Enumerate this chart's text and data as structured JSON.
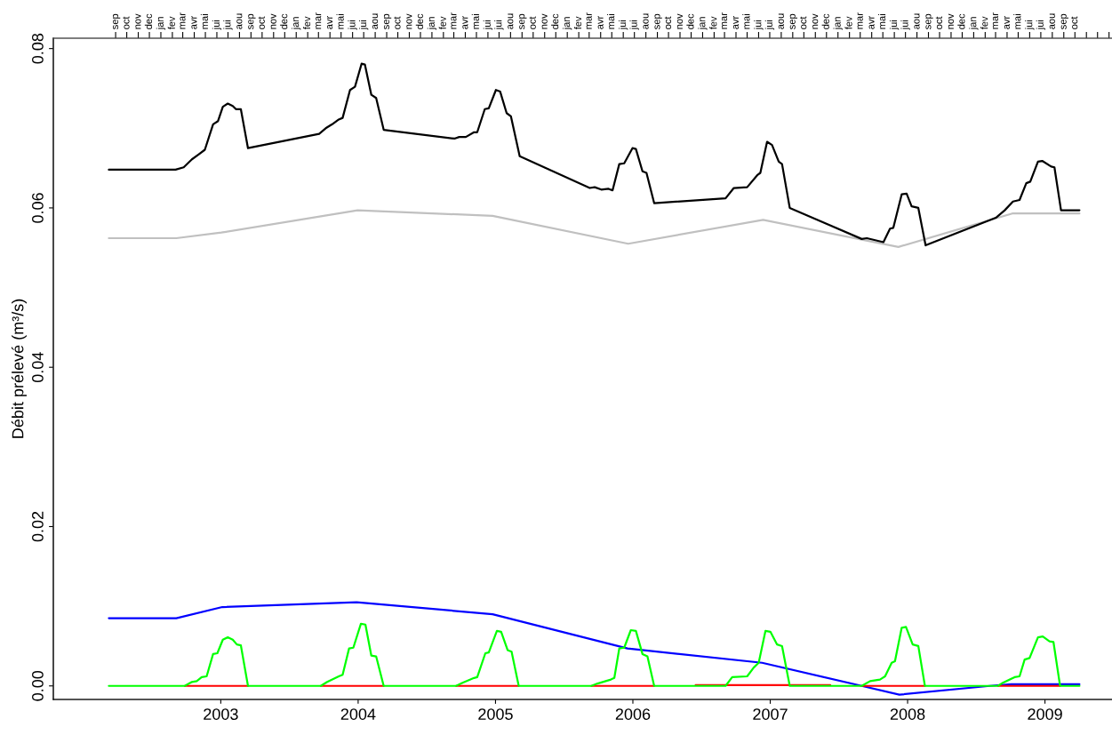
{
  "chart_data": {
    "type": "line",
    "ylabel": "Débit prélevé (m³/s)",
    "xlim": [
      2001.781,
      2009.488
    ],
    "ylim": [
      -0.0017,
      0.0813
    ],
    "xticks": [
      2003,
      2004,
      2005,
      2006,
      2007,
      2008,
      2009
    ],
    "yticks": [
      {
        "value": 0,
        "label": "0.00"
      },
      {
        "value": 0.02,
        "label": "0.02"
      },
      {
        "value": 0.04,
        "label": "0.04"
      },
      {
        "value": 0.06,
        "label": "0.06"
      },
      {
        "value": 0.08,
        "label": "0.08"
      }
    ],
    "x2lim": [
      "2002-03-17",
      "2010-01-09"
    ],
    "x2ticks": [
      {
        "value": "2002-09",
        "label": "sep"
      },
      {
        "value": "2002-10",
        "label": "oct"
      },
      {
        "value": "2002-11",
        "label": "nov"
      },
      {
        "value": "2002-12",
        "label": "dec"
      },
      {
        "value": "2003-01",
        "label": "jan"
      },
      {
        "value": "2003-02",
        "label": "fev"
      },
      {
        "value": "2003-03",
        "label": "mar"
      },
      {
        "value": "2003-04",
        "label": "avr"
      },
      {
        "value": "2003-05",
        "label": "mai"
      },
      {
        "value": "2003-06",
        "label": "jui"
      },
      {
        "value": "2003-07",
        "label": "jui"
      },
      {
        "value": "2003-08",
        "label": "aou"
      },
      {
        "value": "2003-09",
        "label": "sep"
      },
      {
        "value": "2003-10",
        "label": "oct"
      },
      {
        "value": "2003-11",
        "label": "nov"
      },
      {
        "value": "2003-12",
        "label": "dec"
      },
      {
        "value": "2004-01",
        "label": "jan"
      },
      {
        "value": "2004-02",
        "label": "fev"
      },
      {
        "value": "2004-03",
        "label": "mar"
      },
      {
        "value": "2004-04",
        "label": "avr"
      },
      {
        "value": "2004-05",
        "label": "mai"
      },
      {
        "value": "2004-06",
        "label": "jui"
      },
      {
        "value": "2004-07",
        "label": "jui"
      },
      {
        "value": "2004-08",
        "label": "aou"
      },
      {
        "value": "2004-09",
        "label": "sep"
      },
      {
        "value": "2004-10",
        "label": "oct"
      },
      {
        "value": "2004-11",
        "label": "nov"
      },
      {
        "value": "2004-12",
        "label": "dec"
      },
      {
        "value": "2005-01",
        "label": "jan"
      },
      {
        "value": "2005-02",
        "label": "fev"
      },
      {
        "value": "2005-03",
        "label": "mar"
      },
      {
        "value": "2005-04",
        "label": "avr"
      },
      {
        "value": "2005-05",
        "label": "mai"
      },
      {
        "value": "2005-06",
        "label": "jui"
      },
      {
        "value": "2005-07",
        "label": "jui"
      },
      {
        "value": "2005-08",
        "label": "aou"
      },
      {
        "value": "2005-09",
        "label": "sep"
      },
      {
        "value": "2005-10",
        "label": "oct"
      },
      {
        "value": "2005-11",
        "label": "nov"
      },
      {
        "value": "2005-12",
        "label": "dec"
      },
      {
        "value": "2006-01",
        "label": "jan"
      },
      {
        "value": "2006-02",
        "label": "fev"
      },
      {
        "value": "2006-03",
        "label": "mar"
      },
      {
        "value": "2006-04",
        "label": "avr"
      },
      {
        "value": "2006-05",
        "label": "mai"
      },
      {
        "value": "2006-06",
        "label": "jui"
      },
      {
        "value": "2006-07",
        "label": "jui"
      },
      {
        "value": "2006-08",
        "label": "aou"
      },
      {
        "value": "2006-09",
        "label": "sep"
      },
      {
        "value": "2006-10",
        "label": "oct"
      },
      {
        "value": "2006-11",
        "label": "nov"
      },
      {
        "value": "2006-12",
        "label": "dec"
      },
      {
        "value": "2007-01",
        "label": "jan"
      },
      {
        "value": "2007-02",
        "label": "fev"
      },
      {
        "value": "2007-03",
        "label": "mar"
      },
      {
        "value": "2007-04",
        "label": "avr"
      },
      {
        "value": "2007-05",
        "label": "mai"
      },
      {
        "value": "2007-06",
        "label": "jui"
      },
      {
        "value": "2007-07",
        "label": "jui"
      },
      {
        "value": "2007-08",
        "label": "aou"
      },
      {
        "value": "2007-09",
        "label": "sep"
      },
      {
        "value": "2007-10",
        "label": "oct"
      },
      {
        "value": "2007-11",
        "label": "nov"
      },
      {
        "value": "2007-12",
        "label": "dec"
      },
      {
        "value": "2008-01",
        "label": "jan"
      },
      {
        "value": "2008-02",
        "label": "fev"
      },
      {
        "value": "2008-03",
        "label": "mar"
      },
      {
        "value": "2008-04",
        "label": "avr"
      },
      {
        "value": "2008-05",
        "label": "mai"
      },
      {
        "value": "2008-06",
        "label": "jui"
      },
      {
        "value": "2008-07",
        "label": "jui"
      },
      {
        "value": "2008-08",
        "label": "aou"
      },
      {
        "value": "2008-09",
        "label": "sep"
      },
      {
        "value": "2008-10",
        "label": "oct"
      },
      {
        "value": "2008-11",
        "label": "nov"
      },
      {
        "value": "2008-12",
        "label": "dec"
      },
      {
        "value": "2009-01",
        "label": "jan"
      },
      {
        "value": "2009-02",
        "label": "fev"
      },
      {
        "value": "2009-03",
        "label": "mar"
      },
      {
        "value": "2009-04",
        "label": "avr"
      },
      {
        "value": "2009-05",
        "label": "mai"
      },
      {
        "value": "2009-06",
        "label": "jui"
      },
      {
        "value": "2009-07",
        "label": "jui"
      },
      {
        "value": "2009-08",
        "label": "aou"
      },
      {
        "value": "2009-09",
        "label": "sep"
      },
      {
        "value": "2009-10",
        "label": "oct"
      },
      {
        "value": "2009-11",
        "label": null
      },
      {
        "value": "2009-12",
        "label": null
      },
      {
        "value": "2010-01",
        "label": null
      }
    ],
    "series": [
      {
        "color": "#c0c0c0",
        "x": [
          2002.185,
          2002.676,
          2003.004,
          2003.996,
          2004.979,
          2005.966,
          2006.948,
          2007.933,
          2008.762,
          2009.251
        ],
        "values": [
          0.0562,
          0.0562,
          0.0569,
          0.0597,
          0.059,
          0.0555,
          0.0585,
          0.0551,
          0.0593,
          0.0593
        ]
      },
      {
        "color": "#000000",
        "x": [
          2002.185,
          2002.671,
          2002.73,
          2002.79,
          2002.838,
          2002.884,
          2002.944,
          2002.98,
          2003.015,
          2003.051,
          2003.087,
          2003.11,
          2003.146,
          2003.198,
          2003.716,
          2003.764,
          2003.811,
          2003.859,
          2003.887,
          2003.941,
          2003.977,
          2004.025,
          2004.049,
          2004.096,
          2004.131,
          2004.186,
          2004.701,
          2004.736,
          2004.784,
          2004.844,
          2004.867,
          2004.922,
          2004.951,
          2005.003,
          2005.034,
          2005.081,
          2005.112,
          2005.176,
          2005.686,
          2005.722,
          2005.77,
          2005.823,
          2005.852,
          2005.901,
          2005.937,
          2005.997,
          2006.022,
          2006.07,
          2006.099,
          2006.155,
          2006.675,
          2006.735,
          2006.832,
          2006.905,
          2006.928,
          2006.977,
          2007.013,
          2007.062,
          2007.086,
          2007.142,
          2007.666,
          2007.703,
          2007.751,
          2007.824,
          2007.872,
          2007.896,
          2007.957,
          2007.993,
          2008.029,
          2008.078,
          2008.131,
          2008.646,
          2008.707,
          2008.767,
          2008.815,
          2008.864,
          2008.893,
          2008.949,
          2008.98,
          2009.045,
          2009.069,
          2009.117,
          2009.251
        ],
        "values": [
          0.0648,
          0.0648,
          0.0651,
          0.0661,
          0.0667,
          0.0673,
          0.0705,
          0.0709,
          0.0727,
          0.0731,
          0.0728,
          0.0724,
          0.0724,
          0.0675,
          0.0693,
          0.07,
          0.0705,
          0.0711,
          0.0713,
          0.0748,
          0.0752,
          0.0781,
          0.078,
          0.0742,
          0.0738,
          0.0698,
          0.0687,
          0.0689,
          0.0689,
          0.0695,
          0.0695,
          0.0724,
          0.0725,
          0.0748,
          0.0746,
          0.0719,
          0.0715,
          0.0665,
          0.0625,
          0.0626,
          0.0623,
          0.0624,
          0.0622,
          0.0655,
          0.0656,
          0.0675,
          0.0674,
          0.0646,
          0.0644,
          0.0606,
          0.0612,
          0.0625,
          0.0626,
          0.0641,
          0.0644,
          0.0683,
          0.0679,
          0.0658,
          0.0655,
          0.06,
          0.0561,
          0.0562,
          0.056,
          0.0557,
          0.0574,
          0.0575,
          0.0617,
          0.0618,
          0.0602,
          0.06,
          0.0553,
          0.0588,
          0.0597,
          0.0608,
          0.061,
          0.0631,
          0.0633,
          0.0658,
          0.0659,
          0.0652,
          0.0651,
          0.0597,
          0.0597
        ]
      },
      {
        "color": "#0000ff",
        "x": [
          2002.185,
          2002.676,
          2003.011,
          2003.989,
          2004.979,
          2005.961,
          2006.941,
          2007.666,
          2007.94,
          2008.598,
          2008.755,
          2009.251
        ],
        "values": [
          0.0085,
          0.0085,
          0.0099,
          0.0105,
          0.009,
          0.0047,
          0.0029,
          0.0,
          -0.0011,
          0.0,
          0.0002,
          0.0002
        ]
      },
      {
        "color": "#ff0000",
        "x": [
          2002.738,
          2003.198,
          2003.4,
          2003.728,
          2004.186,
          2004.4,
          2004.713,
          2005.169,
          2005.4,
          2005.698,
          2006.155,
          2006.3,
          2006.457,
          2007.437,
          2007.55,
          2007.666,
          2008.126,
          2008.4,
          2008.658,
          2009.11
        ],
        "values": [
          0,
          0,
          null,
          0,
          0,
          null,
          0,
          0,
          null,
          0,
          0,
          null,
          0.0001,
          0.0001,
          null,
          0,
          0,
          null,
          0,
          0
        ]
      },
      {
        "color": "#00ff00",
        "x": [
          2002.185,
          2002.738,
          2002.79,
          2002.825,
          2002.861,
          2002.897,
          2002.944,
          2002.975,
          2003.015,
          2003.051,
          2003.087,
          2003.117,
          2003.146,
          2003.198,
          2003.728,
          2003.775,
          2003.859,
          2003.887,
          2003.934,
          2003.965,
          2004.02,
          2004.053,
          2004.096,
          2004.131,
          2004.186,
          2004.713,
          2004.76,
          2004.844,
          2004.867,
          2004.926,
          2004.951,
          2005.01,
          2005.041,
          2005.088,
          2005.117,
          2005.169,
          2005.698,
          2005.743,
          2005.84,
          2005.865,
          2005.901,
          2005.937,
          2005.985,
          2006.022,
          2006.07,
          2006.106,
          2006.155,
          2006.675,
          2006.723,
          2006.832,
          2006.88,
          2006.916,
          2006.965,
          2007.001,
          2007.05,
          2007.086,
          2007.142,
          2007.666,
          2007.727,
          2007.799,
          2007.836,
          2007.884,
          2007.908,
          2007.957,
          2007.988,
          2008.037,
          2008.078,
          2008.126,
          2008.658,
          2008.694,
          2008.779,
          2008.815,
          2008.852,
          2008.888,
          2008.949,
          2008.984,
          2009.033,
          2009.062,
          2009.11,
          2009.251
        ],
        "values": [
          0,
          0,
          0.0005,
          0.0006,
          0.0011,
          0.0012,
          0.004,
          0.0041,
          0.0058,
          0.0061,
          0.0058,
          0.0052,
          0.0051,
          0,
          0,
          0.0005,
          0.0012,
          0.0014,
          0.0047,
          0.0048,
          0.0078,
          0.0077,
          0.0038,
          0.0037,
          0,
          0,
          0.0004,
          0.001,
          0.0011,
          0.0041,
          0.0042,
          0.0069,
          0.0068,
          0.0045,
          0.0043,
          0,
          0,
          0.0003,
          0.0008,
          0.001,
          0.0047,
          0.0048,
          0.007,
          0.0069,
          0.004,
          0.0037,
          0,
          0,
          0.0011,
          0.0012,
          0.0023,
          0.0029,
          0.0069,
          0.0068,
          0.0052,
          0.005,
          0,
          0,
          0.0006,
          0.0008,
          0.0012,
          0.0029,
          0.0031,
          0.0073,
          0.0074,
          0.0052,
          0.005,
          0,
          0,
          0.0004,
          0.0011,
          0.0012,
          0.0033,
          0.0035,
          0.0061,
          0.0062,
          0.0056,
          0.0055,
          0,
          0
        ]
      }
    ]
  }
}
